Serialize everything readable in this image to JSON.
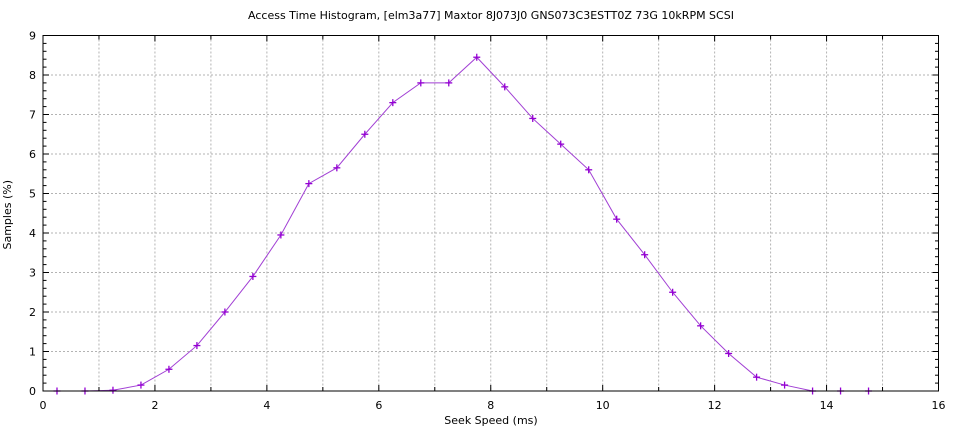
{
  "chart_data": {
    "type": "line",
    "title": "Access Time Histogram, [elm3a77] Maxtor 8J073J0 GNS073C3ESTT0Z 73G 10kRPM SCSI",
    "xlabel": "Seek Speed (ms)",
    "ylabel": "Samples (%)",
    "xlim": [
      0,
      16
    ],
    "ylim": [
      0,
      9
    ],
    "xticks": [
      0,
      2,
      4,
      6,
      8,
      10,
      12,
      14,
      16
    ],
    "yticks": [
      0,
      1,
      2,
      3,
      4,
      5,
      6,
      7,
      8,
      9
    ],
    "x_minor_step": 1,
    "y_minor_step": 0.2,
    "grid": {
      "vertical_every": 1,
      "horizontal_every": 1,
      "style": "dashed",
      "color": "#b3b3b3"
    },
    "legend_position": "none",
    "marker": "plus",
    "line_color": "#a13fd4",
    "marker_color": "#9400d3",
    "border_color": "#000000",
    "x": [
      0.25,
      0.75,
      1.25,
      1.75,
      2.25,
      2.75,
      3.25,
      3.75,
      4.25,
      4.75,
      5.25,
      5.75,
      6.25,
      6.75,
      7.25,
      7.75,
      8.25,
      8.75,
      9.25,
      9.75,
      10.25,
      10.75,
      11.25,
      11.75,
      12.25,
      12.75,
      13.25,
      13.75,
      14.25,
      14.75
    ],
    "y": [
      0,
      0,
      0.02,
      0.15,
      0.55,
      1.15,
      2.0,
      2.9,
      3.95,
      5.25,
      5.65,
      6.5,
      7.3,
      7.8,
      7.8,
      8.45,
      7.7,
      6.9,
      6.25,
      5.6,
      4.35,
      3.45,
      2.5,
      1.65,
      0.95,
      0.35,
      0.15,
      0,
      0,
      0
    ]
  }
}
